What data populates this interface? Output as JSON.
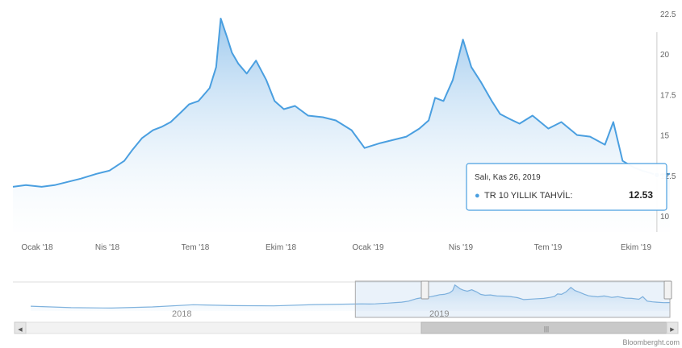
{
  "chart_data": {
    "type": "area",
    "title": "",
    "xlabel": "",
    "ylabel": "",
    "x_tick_labels": [
      "Ocak '18",
      "Nis '18",
      "Tem '18",
      "Ekim '18",
      "Ocak '19",
      "Nis '19",
      "Tem '19",
      "Ekim '19"
    ],
    "y_tick_labels": [
      "22.5",
      "20",
      "17.5",
      "15",
      "12.5",
      "10"
    ],
    "ylim": [
      10,
      22.5
    ],
    "grid": false,
    "legend": "none",
    "series": [
      {
        "name": "TR 10 YILLIK TAHVİL",
        "color": "#4a9fe0",
        "x": [
          "2018-01-01",
          "2018-01-15",
          "2018-02-01",
          "2018-02-15",
          "2018-03-01",
          "2018-03-15",
          "2018-04-01",
          "2018-04-15",
          "2018-05-01",
          "2018-05-10",
          "2018-05-20",
          "2018-06-01",
          "2018-06-10",
          "2018-06-20",
          "2018-07-01",
          "2018-07-10",
          "2018-07-20",
          "2018-08-01",
          "2018-08-08",
          "2018-08-13",
          "2018-08-20",
          "2018-08-25",
          "2018-09-01",
          "2018-09-10",
          "2018-09-20",
          "2018-10-01",
          "2018-10-10",
          "2018-10-20",
          "2018-11-01",
          "2018-11-15",
          "2018-12-01",
          "2018-12-15",
          "2019-01-01",
          "2019-01-15",
          "2019-02-01",
          "2019-02-15",
          "2019-03-01",
          "2019-03-15",
          "2019-03-25",
          "2019-04-01",
          "2019-04-10",
          "2019-04-20",
          "2019-05-01",
          "2019-05-10",
          "2019-05-20",
          "2019-06-01",
          "2019-06-10",
          "2019-06-20",
          "2019-07-01",
          "2019-07-15",
          "2019-08-01",
          "2019-08-15",
          "2019-09-01",
          "2019-09-15",
          "2019-10-01",
          "2019-10-10",
          "2019-10-20",
          "2019-11-01",
          "2019-11-10",
          "2019-11-26",
          "2019-12-10"
        ],
        "y": [
          11.8,
          11.9,
          11.8,
          11.9,
          12.1,
          12.3,
          12.6,
          12.8,
          13.4,
          14.1,
          14.8,
          15.3,
          15.5,
          15.8,
          16.4,
          16.9,
          17.1,
          17.9,
          19.2,
          22.2,
          21.0,
          20.1,
          19.4,
          18.8,
          19.6,
          18.4,
          17.1,
          16.6,
          16.8,
          16.2,
          16.1,
          15.9,
          15.3,
          14.2,
          14.5,
          14.7,
          14.9,
          15.4,
          15.9,
          17.3,
          17.1,
          18.4,
          20.9,
          19.2,
          18.3,
          17.1,
          16.3,
          16.0,
          15.7,
          16.2,
          15.4,
          15.8,
          15.0,
          14.9,
          14.4,
          15.8,
          13.4,
          13.0,
          12.8,
          12.53,
          12.6
        ]
      }
    ],
    "tooltip": {
      "date": "Salı, Kas 26, 2019",
      "series_name": "TR 10 YILLIK TAHVİL:",
      "value": "12.53",
      "x": "2019-11-26"
    },
    "navigator": {
      "year_labels": [
        "2018",
        "2019"
      ],
      "selected_from": "2018-01-01",
      "selected_to": "2019-12-10"
    }
  },
  "ui": {
    "nav_left_arrow": "◀",
    "nav_right_arrow": "▶",
    "scrollbar_grip": "|||",
    "credit": "Bloomberght.com"
  }
}
